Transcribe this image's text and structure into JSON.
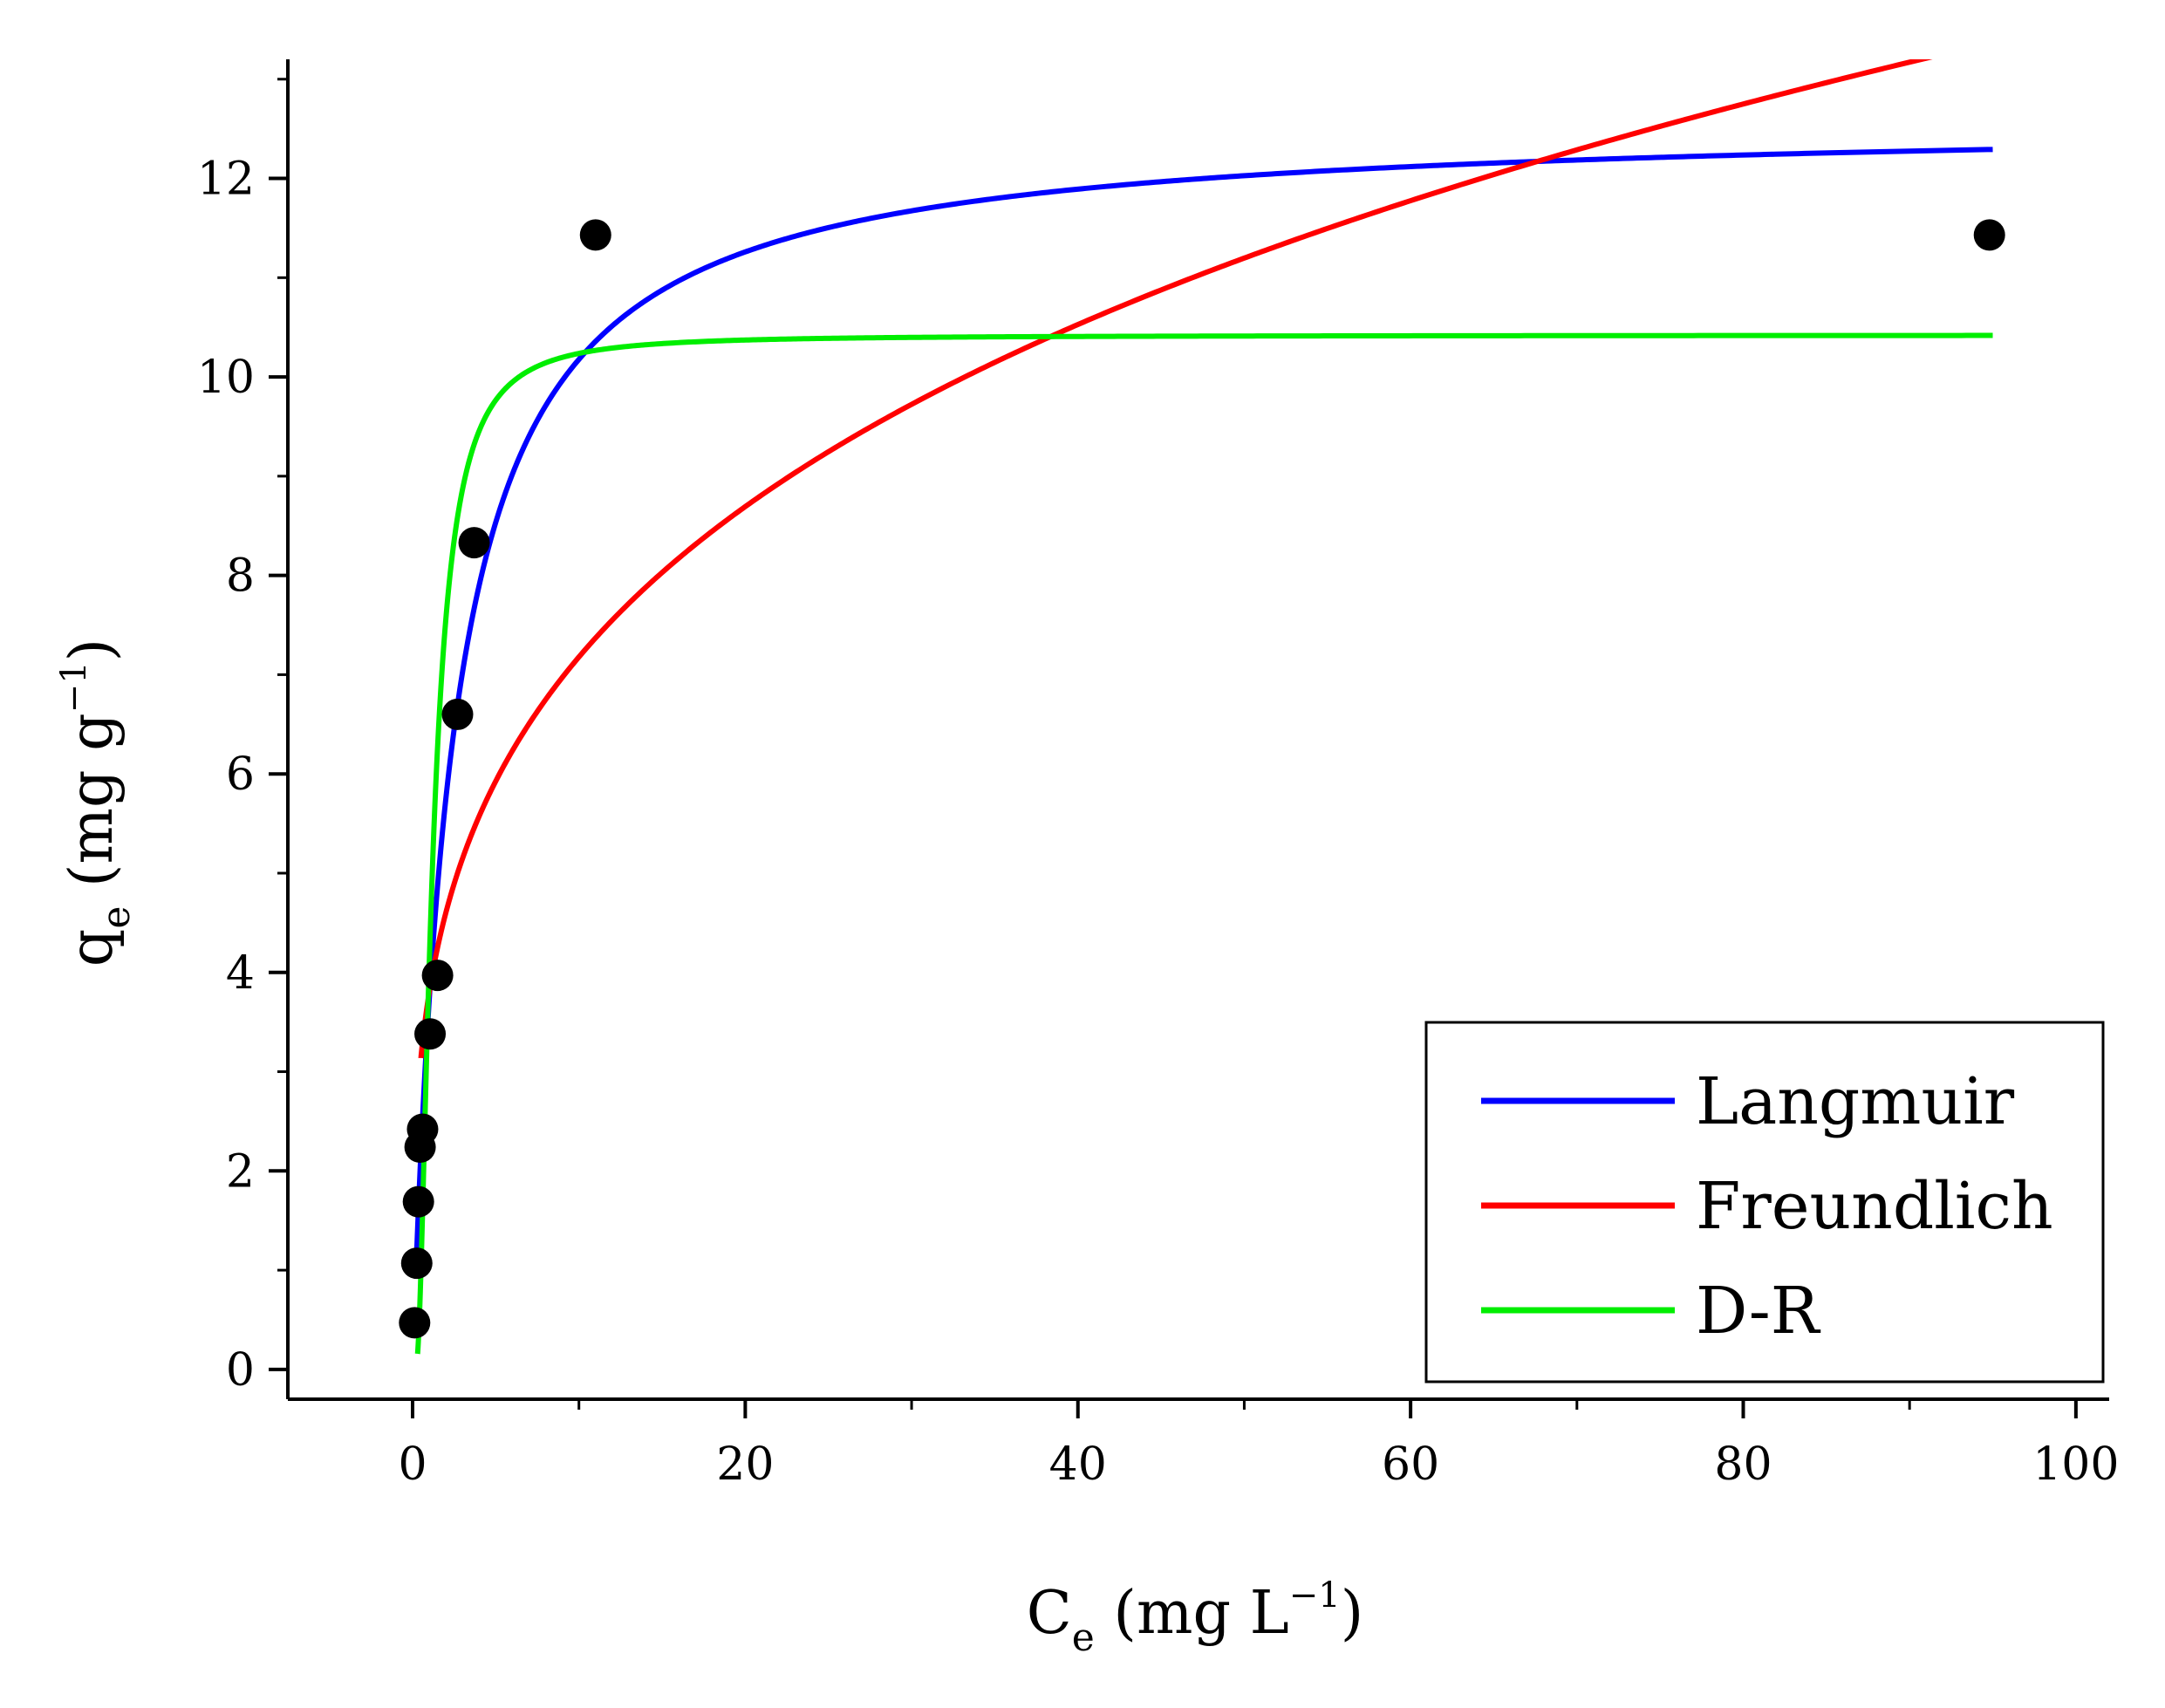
{
  "chart_data": {
    "type": "scatter",
    "title": "",
    "xlabel": {
      "main": "C",
      "sub": "e",
      "unit_open": " (mg L",
      "sup": "−1",
      "unit_close": ")"
    },
    "ylabel": {
      "main": "q",
      "sub": "e",
      "unit_open": " (mg g",
      "sup": "−1",
      "unit_close": ")"
    },
    "xlim": [
      -7.5,
      102
    ],
    "ylim": [
      -0.3,
      13.2
    ],
    "x_ticks": [
      0,
      20,
      40,
      60,
      80,
      100
    ],
    "x_tick_labels": [
      "0",
      "20",
      "40",
      "60",
      "80",
      "100"
    ],
    "x_minor_step": 10,
    "y_ticks": [
      0,
      2,
      4,
      6,
      8,
      10,
      12
    ],
    "y_tick_labels": [
      "0",
      "2",
      "4",
      "6",
      "8",
      "10",
      "12"
    ],
    "y_minor_step": 1,
    "grid": false,
    "legend_position": "bottom-right",
    "points": [
      {
        "x": 0.12,
        "y": 0.47
      },
      {
        "x": 0.25,
        "y": 1.07
      },
      {
        "x": 0.35,
        "y": 1.69
      },
      {
        "x": 0.45,
        "y": 2.24
      },
      {
        "x": 0.6,
        "y": 2.42
      },
      {
        "x": 1.05,
        "y": 3.38
      },
      {
        "x": 1.5,
        "y": 3.97
      },
      {
        "x": 2.7,
        "y": 6.6
      },
      {
        "x": 3.7,
        "y": 8.33
      },
      {
        "x": 11.0,
        "y": 11.43
      },
      {
        "x": 94.8,
        "y": 11.43
      }
    ],
    "series": [
      {
        "name": "Langmuir",
        "color": "#0000ff",
        "x_range": [
          0.2,
          95
        ],
        "model": "langmuir",
        "params": {
          "qmax": 12.6,
          "KL": 0.42
        }
      },
      {
        "name": "Freundlich",
        "color": "#ff0000",
        "x_range": [
          0.5,
          92
        ],
        "model": "freundlich",
        "params": {
          "KF": 3.8,
          "n": 3.62
        }
      },
      {
        "name": "D-R",
        "color": "#00ee00",
        "x_range": [
          0.3,
          95
        ],
        "model": "dr",
        "params": {
          "qs": 10.42,
          "B": 0.195
        }
      }
    ]
  }
}
